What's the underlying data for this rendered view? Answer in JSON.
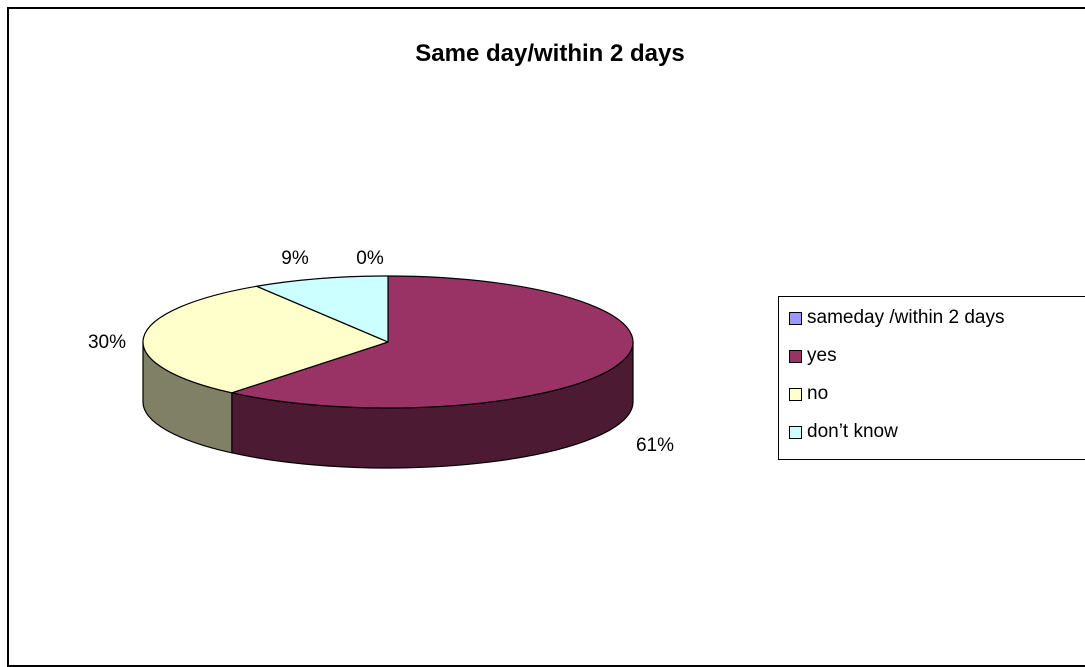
{
  "chart_data": {
    "type": "pie",
    "title": "Same day/within 2 days",
    "categories": [
      "sameday /within 2 days",
      "yes",
      "no",
      "don’t know"
    ],
    "values": [
      0,
      61,
      30,
      9
    ],
    "labels": [
      "0%",
      "61%",
      "30%",
      "9%"
    ],
    "colors": [
      "#9999ff",
      "#993366",
      "#ffffcc",
      "#ccffff"
    ],
    "side_colors": [
      "#4c4c80",
      "#4d1a33",
      "#808066",
      "#668080"
    ],
    "style": "3d",
    "legend": "right"
  }
}
